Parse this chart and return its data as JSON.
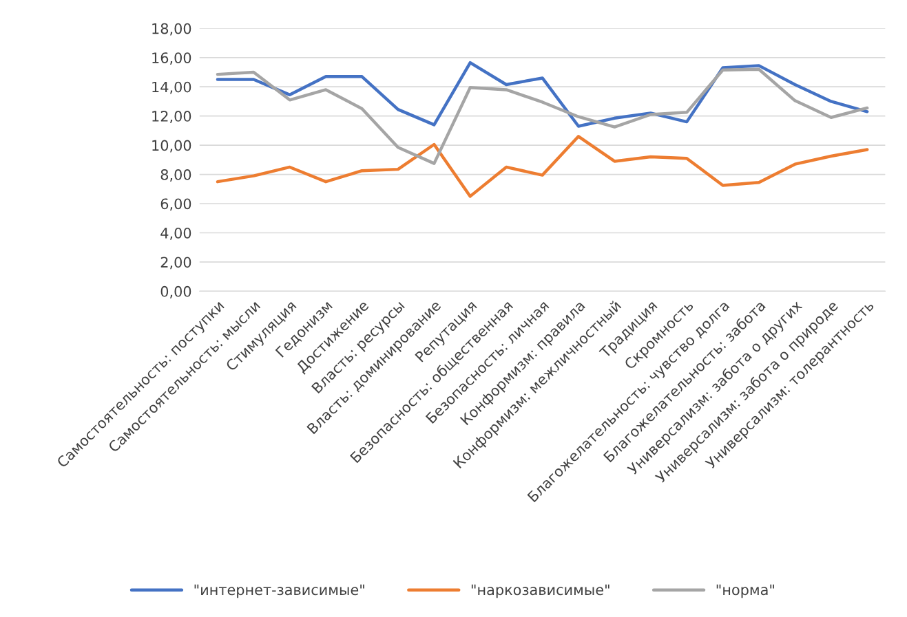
{
  "chart_data": {
    "type": "line",
    "categories": [
      "Самостоятельность: поступки",
      "Самостоятельность: мысли",
      "Стимуляция",
      "Гедонизм",
      "Достижение",
      "Власть: ресурсы",
      "Власть: доминирование",
      "Репутация",
      "Безопасность: общественная",
      "Безопасность: личная",
      "Конформизм: правила",
      "Конформизм: межличностный",
      "Традиция",
      "Скромность",
      "Благожелательность: чувство долга",
      "Благожелательность: забота",
      "Универсализм: забота о других",
      "Универсализм: забота о природе",
      "Универсализм: толерантность"
    ],
    "series": [
      {
        "name": "\"интернет-зависимые\"",
        "color": "#4472c4",
        "values": [
          14.5,
          14.5,
          13.45,
          14.7,
          14.7,
          12.45,
          11.4,
          15.65,
          14.15,
          14.6,
          11.3,
          11.85,
          12.2,
          11.6,
          15.3,
          15.45,
          14.15,
          13.0,
          12.3
        ]
      },
      {
        "name": "\"наркозависимые\"",
        "color": "#ed7d31",
        "values": [
          7.5,
          7.9,
          8.5,
          7.5,
          8.25,
          8.35,
          10.05,
          6.5,
          8.5,
          7.95,
          10.6,
          8.9,
          9.2,
          9.1,
          7.25,
          7.45,
          8.7,
          9.25,
          9.7
        ]
      },
      {
        "name": "\"норма\"",
        "color": "#a5a5a5",
        "values": [
          14.85,
          15.0,
          13.1,
          13.8,
          12.5,
          9.85,
          8.75,
          13.95,
          13.8,
          12.95,
          11.95,
          11.25,
          12.1,
          12.25,
          15.15,
          15.2,
          13.05,
          11.9,
          12.55
        ]
      }
    ],
    "ylim": [
      0,
      18
    ],
    "yticks": [
      {
        "value": 0,
        "label": "0,00"
      },
      {
        "value": 2,
        "label": "2,00"
      },
      {
        "value": 4,
        "label": "4,00"
      },
      {
        "value": 6,
        "label": "6,00"
      },
      {
        "value": 8,
        "label": "8,00"
      },
      {
        "value": 10,
        "label": "10,00"
      },
      {
        "value": 12,
        "label": "12,00"
      },
      {
        "value": 14,
        "label": "14,00"
      },
      {
        "value": 16,
        "label": "16,00"
      },
      {
        "value": 18,
        "label": "18,00"
      }
    ],
    "grid": "y",
    "legend": "bottom",
    "marker": "none",
    "line_style": "solid"
  }
}
